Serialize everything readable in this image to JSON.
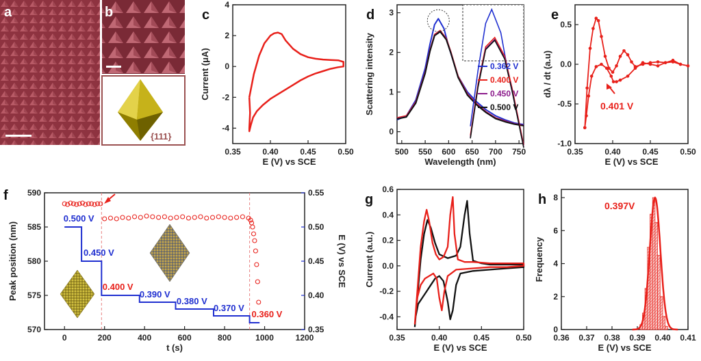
{
  "panel_labels": {
    "a": "a",
    "b": "b",
    "c": "c",
    "d": "d",
    "e": "e",
    "f": "f",
    "g": "g",
    "h": "h"
  },
  "panel_b": {
    "facet_label": "{111}"
  },
  "colors": {
    "red": "#e8201a",
    "blue": "#1f2fd0",
    "purple": "#8b1a8b",
    "black": "#111111",
    "sem_bg": "#9a3540",
    "gold": "#c9a800"
  },
  "chart_data": [
    {
      "panel": "c",
      "type": "line",
      "title": "",
      "xlabel": "E (V) vs SCE",
      "ylabel": "Current (μA)",
      "xlim": [
        0.35,
        0.5
      ],
      "ylim": [
        -5,
        4
      ],
      "xticks": [
        "0.35",
        "0.40",
        "0.45",
        "0.50"
      ],
      "yticks": [
        "-4",
        "-2",
        "0",
        "2",
        "4"
      ],
      "series": [
        {
          "color": "#e8201a",
          "x": [
            0.372,
            0.378,
            0.385,
            0.392,
            0.4,
            0.405,
            0.41,
            0.415,
            0.42,
            0.43,
            0.44,
            0.45,
            0.46,
            0.47,
            0.48,
            0.49,
            0.497,
            0.497,
            0.49,
            0.48,
            0.47,
            0.46,
            0.45,
            0.44,
            0.43,
            0.42,
            0.41,
            0.4,
            0.39,
            0.382,
            0.377,
            0.374,
            0.372,
            0.372,
            0.373,
            0.372
          ],
          "y": [
            -2.0,
            -0.5,
            0.7,
            1.5,
            2.0,
            2.15,
            2.2,
            2.1,
            1.7,
            1.15,
            0.8,
            0.6,
            0.5,
            0.45,
            0.42,
            0.4,
            0.3,
            0.0,
            -0.05,
            -0.15,
            -0.3,
            -0.45,
            -0.65,
            -0.9,
            -1.2,
            -1.5,
            -1.8,
            -2.1,
            -2.5,
            -2.9,
            -3.3,
            -3.8,
            -4.2,
            -4.0,
            -3.0,
            -2.0
          ]
        }
      ]
    },
    {
      "panel": "d",
      "type": "line",
      "title": "",
      "xlabel": "Wavelength (nm)",
      "ylabel": "Scattering intensity",
      "xlim": [
        490,
        760
      ],
      "ylim": [
        -0.3,
        3.2
      ],
      "xticks": [
        "500",
        "550",
        "600",
        "650",
        "700",
        "750"
      ],
      "yticks": [
        "0",
        "1",
        "2",
        "3"
      ],
      "legend": "bottom-right",
      "series": [
        {
          "name": "0.362 V",
          "color": "#1f2fd0",
          "x": [
            490,
            510,
            530,
            550,
            560,
            570,
            578,
            590,
            600,
            620,
            640,
            660,
            680,
            700,
            720,
            740,
            760
          ],
          "y": [
            0.3,
            0.4,
            0.8,
            1.6,
            2.2,
            2.7,
            2.85,
            2.6,
            2.15,
            1.4,
            1.0,
            0.75,
            0.55,
            0.4,
            0.3,
            0.22,
            0.18
          ]
        },
        {
          "name": "0.400 V",
          "color": "#e8201a",
          "x": [
            490,
            510,
            530,
            550,
            560,
            570,
            582,
            595,
            605,
            620,
            640,
            660,
            680,
            700,
            720,
            740,
            760
          ],
          "y": [
            0.35,
            0.4,
            0.75,
            1.5,
            2.05,
            2.45,
            2.55,
            2.35,
            2.0,
            1.4,
            0.95,
            0.7,
            0.5,
            0.35,
            0.27,
            0.2,
            0.16
          ]
        },
        {
          "name": "0.450 V",
          "color": "#8b1a8b",
          "x": [
            490,
            510,
            530,
            550,
            560,
            570,
            582,
            595,
            605,
            620,
            640,
            660,
            680,
            700,
            720,
            740,
            760
          ],
          "y": [
            0.33,
            0.38,
            0.73,
            1.48,
            2.03,
            2.43,
            2.53,
            2.33,
            1.98,
            1.38,
            0.93,
            0.68,
            0.49,
            0.34,
            0.26,
            0.2,
            0.16
          ]
        },
        {
          "name": "0.500 V",
          "color": "#111111",
          "x": [
            490,
            510,
            530,
            550,
            560,
            570,
            582,
            595,
            605,
            620,
            640,
            660,
            680,
            700,
            720,
            740,
            760
          ],
          "y": [
            0.32,
            0.37,
            0.72,
            1.47,
            2.02,
            2.42,
            2.52,
            2.32,
            1.97,
            1.37,
            0.92,
            0.67,
            0.48,
            0.33,
            0.25,
            0.19,
            0.15
          ]
        }
      ]
    },
    {
      "panel": "e",
      "type": "line",
      "title": "",
      "xlabel": "E (V) vs SCE",
      "ylabel": "dλ / dt (a.u)",
      "xlim": [
        0.35,
        0.5
      ],
      "ylim": [
        -1.0,
        0.75
      ],
      "xticks": [
        "0.35",
        "0.40",
        "0.45",
        "0.50"
      ],
      "yticks": [
        "-1.0",
        "-0.5",
        "0.0",
        "0.5"
      ],
      "annotation": "0.401 V",
      "series": [
        {
          "color": "#e8201a",
          "x": [
            0.363,
            0.366,
            0.37,
            0.374,
            0.378,
            0.381,
            0.385,
            0.39,
            0.395,
            0.4,
            0.405,
            0.41,
            0.415,
            0.42,
            0.425,
            0.43,
            0.44,
            0.45,
            0.46,
            0.47,
            0.48,
            0.49,
            0.5,
            0.49,
            0.48,
            0.47,
            0.46,
            0.45,
            0.44,
            0.43,
            0.42,
            0.41,
            0.405,
            0.401,
            0.398,
            0.392,
            0.385,
            0.378,
            0.372,
            0.368,
            0.365,
            0.363
          ],
          "y": [
            -0.8,
            -0.3,
            0.2,
            0.45,
            0.58,
            0.55,
            0.35,
            0.1,
            -0.05,
            -0.1,
            -0.02,
            0.1,
            0.17,
            0.12,
            0.03,
            -0.03,
            0.0,
            0.02,
            0.03,
            0.02,
            0.05,
            0.0,
            -0.02,
            0.0,
            0.03,
            0.02,
            -0.02,
            0.0,
            0.02,
            -0.05,
            -0.15,
            -0.2,
            -0.22,
            -0.22,
            -0.15,
            -0.05,
            0.0,
            -0.03,
            -0.15,
            -0.4,
            -0.65,
            -0.8
          ]
        }
      ]
    },
    {
      "panel": "f",
      "type": "scatter",
      "title": "",
      "xlabel": "t (s)",
      "ylabel": "Peak position (nm)",
      "y2label": "E (V) vs SCE",
      "xlim": [
        -100,
        1200
      ],
      "ylim": [
        570,
        590
      ],
      "y2lim": [
        0.35,
        0.55
      ],
      "xticks": [
        "0",
        "200",
        "400",
        "600",
        "800",
        "1000",
        "1200"
      ],
      "yticks": [
        "570",
        "575",
        "580",
        "585",
        "590"
      ],
      "y2ticks": [
        "0.35",
        "0.40",
        "0.45",
        "0.50",
        "0.55"
      ],
      "scatter": {
        "color": "#e8201a",
        "x": [
          0,
          15,
          30,
          45,
          60,
          75,
          90,
          105,
          120,
          135,
          150,
          165,
          180,
          200,
          230,
          260,
          290,
          320,
          350,
          380,
          410,
          440,
          470,
          500,
          530,
          560,
          590,
          620,
          650,
          680,
          710,
          740,
          770,
          800,
          830,
          860,
          890,
          920,
          930,
          935,
          940,
          945,
          950,
          955,
          960,
          965,
          970
        ],
        "y": [
          588.4,
          588.3,
          588.5,
          588.4,
          588.3,
          588.4,
          588.5,
          588.3,
          588.4,
          588.4,
          588.3,
          588.4,
          588.4,
          586.2,
          586.3,
          586.2,
          586.4,
          586.3,
          586.5,
          586.4,
          586.6,
          586.5,
          586.4,
          586.5,
          586.3,
          586.4,
          586.5,
          586.3,
          586.4,
          586.5,
          586.3,
          586.4,
          586.5,
          586.4,
          586.3,
          586.4,
          586.5,
          586.3,
          586.0,
          585.6,
          585.0,
          584.0,
          583.0,
          581.5,
          579.5,
          577.0,
          574.0
        ]
      },
      "steps": {
        "color": "#1f2fd0",
        "t": [
          0,
          85,
          85,
          185,
          185,
          375,
          375,
          555,
          555,
          745,
          745,
          925,
          925,
          975
        ],
        "e": [
          0.5,
          0.5,
          0.45,
          0.45,
          0.4,
          0.4,
          0.39,
          0.39,
          0.38,
          0.38,
          0.37,
          0.37,
          0.36,
          0.36
        ]
      },
      "step_labels": [
        {
          "t": -5,
          "e": 0.508,
          "text": "0.500 V",
          "color": "#1f2fd0"
        },
        {
          "t": 95,
          "e": 0.458,
          "text": "0.450 V",
          "color": "#1f2fd0"
        },
        {
          "t": 190,
          "e": 0.408,
          "text": "0.400 V",
          "color": "#e8201a"
        },
        {
          "t": 375,
          "e": 0.397,
          "text": "0.390 V",
          "color": "#1f2fd0"
        },
        {
          "t": 560,
          "e": 0.387,
          "text": "0.380 V",
          "color": "#1f2fd0"
        },
        {
          "t": 745,
          "e": 0.377,
          "text": "0.370 V",
          "color": "#1f2fd0"
        },
        {
          "t": 935,
          "e": 0.368,
          "text": "0.360 V",
          "color": "#e8201a"
        }
      ],
      "dashed_lines_t": [
        185,
        925
      ]
    },
    {
      "panel": "g",
      "type": "line",
      "title": "",
      "xlabel": "E (V) vs SCE",
      "ylabel": "Current (a.u.)",
      "xlim": [
        0.35,
        0.5
      ],
      "ylim": [
        -0.5,
        0.6
      ],
      "xticks": [
        "0.35",
        "0.40",
        "0.45",
        "0.50"
      ],
      "yticks": [
        "-0.4",
        "-0.2",
        "0.0",
        "0.2",
        "0.4",
        "0.6"
      ],
      "series": [
        {
          "color": "#111111",
          "x": [
            0.371,
            0.374,
            0.378,
            0.382,
            0.386,
            0.39,
            0.395,
            0.4,
            0.41,
            0.42,
            0.425,
            0.43,
            0.433,
            0.436,
            0.44,
            0.45,
            0.46,
            0.48,
            0.5,
            0.5,
            0.48,
            0.46,
            0.44,
            0.425,
            0.42,
            0.416,
            0.413,
            0.41,
            0.405,
            0.4,
            0.395,
            0.39,
            0.385,
            0.38,
            0.375,
            0.372,
            0.371
          ],
          "y": [
            -0.48,
            -0.25,
            0.05,
            0.25,
            0.36,
            0.3,
            0.18,
            0.09,
            0.06,
            0.08,
            0.15,
            0.4,
            0.51,
            0.25,
            0.04,
            0.02,
            0.01,
            0.01,
            0.01,
            -0.01,
            -0.02,
            -0.03,
            -0.04,
            -0.06,
            -0.15,
            -0.35,
            -0.42,
            -0.28,
            -0.12,
            -0.08,
            -0.1,
            -0.15,
            -0.2,
            -0.25,
            -0.3,
            -0.4,
            -0.48
          ]
        },
        {
          "color": "#e8201a",
          "x": [
            0.371,
            0.374,
            0.378,
            0.382,
            0.385,
            0.388,
            0.392,
            0.396,
            0.4,
            0.405,
            0.41,
            0.413,
            0.416,
            0.418,
            0.422,
            0.43,
            0.44,
            0.46,
            0.48,
            0.5,
            0.5,
            0.48,
            0.46,
            0.44,
            0.42,
            0.41,
            0.406,
            0.403,
            0.4,
            0.397,
            0.393,
            0.388,
            0.383,
            0.378,
            0.374,
            0.372,
            0.371
          ],
          "y": [
            -0.46,
            -0.2,
            0.15,
            0.35,
            0.44,
            0.35,
            0.18,
            0.09,
            0.05,
            0.07,
            0.15,
            0.4,
            0.54,
            0.25,
            0.05,
            0.03,
            0.03,
            0.02,
            0.02,
            0.02,
            0.0,
            -0.01,
            -0.01,
            -0.02,
            -0.03,
            -0.08,
            -0.2,
            -0.35,
            -0.25,
            -0.1,
            -0.06,
            -0.08,
            -0.1,
            -0.15,
            -0.25,
            -0.38,
            -0.46
          ]
        }
      ]
    },
    {
      "panel": "h",
      "type": "bar",
      "title": "",
      "xlabel": "E (V) vs SCE",
      "ylabel": "Frequency",
      "xlim": [
        0.36,
        0.41
      ],
      "ylim": [
        0,
        8.5
      ],
      "xticks": [
        "0.36",
        "0.37",
        "0.38",
        "0.39",
        "0.40",
        "0.41"
      ],
      "yticks": [
        "0",
        "2",
        "4",
        "6",
        "8"
      ],
      "annotation": "0.397V",
      "bins": [
        0.3915,
        0.3925,
        0.3935,
        0.3945,
        0.3955,
        0.3965,
        0.3975,
        0.3985,
        0.3995,
        0.4005,
        0.4015
      ],
      "values": [
        0.3,
        1.0,
        2.5,
        5.0,
        7.0,
        8.0,
        6.5,
        4.5,
        2.0,
        0.8,
        0.2
      ],
      "fit_center": 0.397,
      "fit_sigma": 0.0021,
      "fit_peak": 8.0
    }
  ]
}
